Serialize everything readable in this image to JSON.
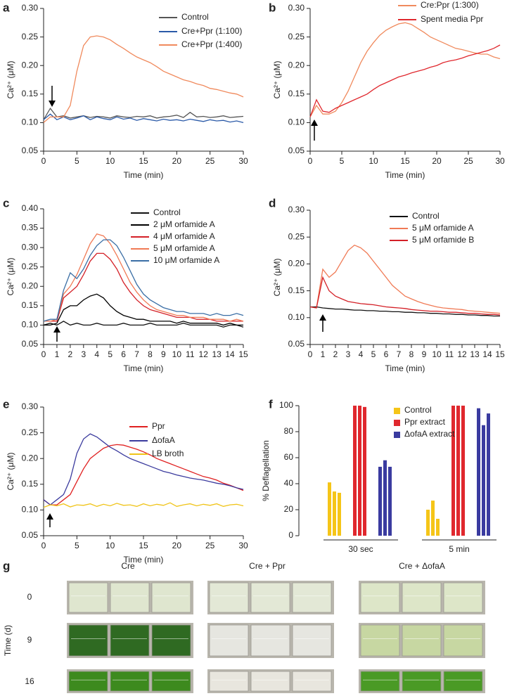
{
  "chart_data": [
    {
      "type": "line",
      "panel_label": "a",
      "x_label": "Time (min)",
      "y_label": "Ca²⁺ (μM)",
      "x": [
        0,
        1,
        2,
        3,
        4,
        5,
        6,
        7,
        8,
        9,
        10,
        11,
        12,
        13,
        14,
        15,
        16,
        17,
        18,
        19,
        20,
        21,
        22,
        23,
        24,
        25,
        26,
        27,
        28,
        29,
        30
      ],
      "xlim": [
        0,
        30
      ],
      "xticks": [
        0,
        5,
        10,
        15,
        20,
        25,
        30
      ],
      "ylim": [
        0.05,
        0.3
      ],
      "yticks": [
        0.05,
        {
          "value": 0.1,
          "label": "0.10"
        },
        0.15,
        {
          "value": 0.2,
          "label": "0.20"
        },
        0.25,
        {
          "value": 0.3,
          "label": "0.30"
        }
      ],
      "series": [
        {
          "name": "Control",
          "color": "#555555",
          "values": [
            0.105,
            0.125,
            0.11,
            0.112,
            0.108,
            0.11,
            0.112,
            0.109,
            0.111,
            0.11,
            0.108,
            0.112,
            0.11,
            0.109,
            0.111,
            0.11,
            0.112,
            0.108,
            0.11,
            0.111,
            0.113,
            0.109,
            0.118,
            0.11,
            0.111,
            0.109,
            0.11,
            0.112,
            0.109,
            0.11,
            0.111
          ]
        },
        {
          "name": "Cre+Ppr (1:100)",
          "color": "#2b5aa8",
          "values": [
            0.105,
            0.115,
            0.105,
            0.11,
            0.105,
            0.108,
            0.112,
            0.105,
            0.11,
            0.107,
            0.105,
            0.11,
            0.106,
            0.108,
            0.104,
            0.107,
            0.105,
            0.103,
            0.106,
            0.104,
            0.105,
            0.103,
            0.106,
            0.104,
            0.102,
            0.105,
            0.103,
            0.104,
            0.101,
            0.103,
            0.1
          ]
        },
        {
          "name": "Cre+Ppr (1:400)",
          "color": "#f08a5d",
          "values": [
            0.1,
            0.11,
            0.11,
            0.11,
            0.13,
            0.19,
            0.235,
            0.25,
            0.252,
            0.25,
            0.245,
            0.237,
            0.23,
            0.222,
            0.215,
            0.21,
            0.205,
            0.198,
            0.19,
            0.185,
            0.18,
            0.175,
            0.172,
            0.168,
            0.165,
            0.16,
            0.158,
            0.155,
            0.152,
            0.15,
            0.145
          ]
        }
      ]
    },
    {
      "type": "line",
      "panel_label": "b",
      "x_label": "Time (min)",
      "y_label": "Ca²⁺ (μM)",
      "x": [
        0,
        1,
        2,
        3,
        4,
        5,
        6,
        7,
        8,
        9,
        10,
        11,
        12,
        13,
        14,
        15,
        16,
        17,
        18,
        19,
        20,
        21,
        22,
        23,
        24,
        25,
        26,
        27,
        28,
        29,
        30
      ],
      "xlim": [
        0,
        30
      ],
      "xticks": [
        0,
        5,
        10,
        15,
        20,
        25,
        30
      ],
      "ylim": [
        0.05,
        0.3
      ],
      "yticks": [
        0.05,
        {
          "value": 0.1,
          "label": "0.10"
        },
        0.15,
        {
          "value": 0.2,
          "label": "0.20"
        },
        0.25,
        {
          "value": 0.3,
          "label": "0.30"
        }
      ],
      "series": [
        {
          "name": "Cre:Ppr (1:300)",
          "color": "#f08a5d",
          "values": [
            0.11,
            0.13,
            0.115,
            0.115,
            0.12,
            0.135,
            0.155,
            0.18,
            0.205,
            0.225,
            0.24,
            0.253,
            0.262,
            0.268,
            0.273,
            0.275,
            0.272,
            0.265,
            0.258,
            0.25,
            0.245,
            0.24,
            0.235,
            0.23,
            0.228,
            0.225,
            0.222,
            0.22,
            0.22,
            0.215,
            0.212
          ]
        },
        {
          "name": "Spent media Ppr",
          "color": "#e0282e",
          "values": [
            0.11,
            0.14,
            0.12,
            0.118,
            0.125,
            0.13,
            0.135,
            0.14,
            0.145,
            0.15,
            0.158,
            0.165,
            0.17,
            0.175,
            0.18,
            0.183,
            0.187,
            0.19,
            0.193,
            0.197,
            0.2,
            0.205,
            0.208,
            0.21,
            0.213,
            0.217,
            0.22,
            0.223,
            0.226,
            0.23,
            0.236
          ]
        }
      ]
    },
    {
      "type": "line",
      "panel_label": "c",
      "x_label": "Time (min)",
      "y_label": "Ca²⁺ (μM)",
      "x": [
        0,
        0.5,
        1,
        1.5,
        2,
        2.5,
        3,
        3.5,
        4,
        4.5,
        5,
        5.5,
        6,
        6.5,
        7,
        7.5,
        8,
        8.5,
        9,
        9.5,
        10,
        10.5,
        11,
        11.5,
        12,
        12.5,
        13,
        13.5,
        14,
        14.5,
        15
      ],
      "xlim": [
        0,
        15
      ],
      "xticks": [
        0,
        1,
        2,
        3,
        4,
        5,
        6,
        7,
        8,
        9,
        10,
        11,
        12,
        13,
        14,
        15
      ],
      "ylim": [
        0.05,
        0.4
      ],
      "yticks": [
        0.05,
        {
          "value": 0.1,
          "label": "0.10"
        },
        0.15,
        {
          "value": 0.2,
          "label": "0.20"
        },
        0.25,
        {
          "value": 0.3,
          "label": "0.30"
        },
        0.35,
        {
          "value": 0.4,
          "label": "0.40"
        }
      ],
      "series": [
        {
          "name": "Control",
          "color": "#111111",
          "values": [
            0.1,
            0.105,
            0.1,
            0.11,
            0.1,
            0.105,
            0.1,
            0.1,
            0.105,
            0.1,
            0.1,
            0.1,
            0.105,
            0.1,
            0.1,
            0.1,
            0.105,
            0.1,
            0.1,
            0.1,
            0.1,
            0.105,
            0.1,
            0.1,
            0.1,
            0.1,
            0.1,
            0.095,
            0.1,
            0.1,
            0.095
          ]
        },
        {
          "name": "2 μM orfamide A",
          "color": "#000000",
          "values": [
            0.1,
            0.1,
            0.105,
            0.14,
            0.15,
            0.15,
            0.165,
            0.175,
            0.18,
            0.17,
            0.15,
            0.135,
            0.125,
            0.12,
            0.115,
            0.115,
            0.11,
            0.11,
            0.11,
            0.11,
            0.105,
            0.11,
            0.105,
            0.105,
            0.105,
            0.105,
            0.105,
            0.1,
            0.105,
            0.1,
            0.1
          ]
        },
        {
          "name": "4 μM orfamide A",
          "color": "#d42027",
          "values": [
            0.11,
            0.11,
            0.11,
            0.17,
            0.185,
            0.2,
            0.23,
            0.265,
            0.285,
            0.285,
            0.27,
            0.245,
            0.21,
            0.185,
            0.165,
            0.15,
            0.14,
            0.135,
            0.13,
            0.125,
            0.12,
            0.12,
            0.12,
            0.115,
            0.115,
            0.115,
            0.11,
            0.11,
            0.11,
            0.11,
            0.11
          ]
        },
        {
          "name": "5 μM orfamide A",
          "color": "#f07a55",
          "values": [
            0.11,
            0.11,
            0.115,
            0.18,
            0.2,
            0.23,
            0.27,
            0.31,
            0.335,
            0.33,
            0.31,
            0.28,
            0.245,
            0.21,
            0.185,
            0.165,
            0.15,
            0.14,
            0.135,
            0.13,
            0.125,
            0.125,
            0.12,
            0.12,
            0.12,
            0.115,
            0.115,
            0.115,
            0.11,
            0.115,
            0.11
          ]
        },
        {
          "name": "10 μM orfamide A",
          "color": "#3a6ea5",
          "values": [
            0.11,
            0.115,
            0.115,
            0.19,
            0.235,
            0.22,
            0.245,
            0.28,
            0.305,
            0.32,
            0.32,
            0.305,
            0.275,
            0.24,
            0.205,
            0.18,
            0.165,
            0.155,
            0.145,
            0.14,
            0.135,
            0.135,
            0.13,
            0.13,
            0.13,
            0.125,
            0.13,
            0.125,
            0.125,
            0.13,
            0.125
          ]
        }
      ]
    },
    {
      "type": "line",
      "panel_label": "d",
      "x_label": "Time (min)",
      "y_label": "Ca²⁺ (μM)",
      "x": [
        0,
        0.5,
        1,
        1.5,
        2,
        2.5,
        3,
        3.5,
        4,
        4.5,
        5,
        5.5,
        6,
        6.5,
        7,
        7.5,
        8,
        8.5,
        9,
        9.5,
        10,
        10.5,
        11,
        11.5,
        12,
        12.5,
        13,
        13.5,
        14,
        14.5,
        15
      ],
      "xlim": [
        0,
        15
      ],
      "xticks": [
        0,
        1,
        2,
        3,
        4,
        5,
        6,
        7,
        8,
        9,
        10,
        11,
        12,
        13,
        14,
        15
      ],
      "ylim": [
        0.05,
        0.3
      ],
      "yticks": [
        0.05,
        {
          "value": 0.1,
          "label": "0.10"
        },
        0.15,
        {
          "value": 0.2,
          "label": "0.20"
        },
        0.25,
        {
          "value": 0.3,
          "label": "0.30"
        }
      ],
      "series": [
        {
          "name": "Control",
          "color": "#111111",
          "values": [
            0.12,
            0.12,
            0.118,
            0.117,
            0.116,
            0.116,
            0.115,
            0.114,
            0.114,
            0.113,
            0.113,
            0.112,
            0.112,
            0.111,
            0.111,
            0.11,
            0.11,
            0.109,
            0.109,
            0.108,
            0.108,
            0.107,
            0.107,
            0.106,
            0.106,
            0.105,
            0.105,
            0.104,
            0.104,
            0.103,
            0.103
          ]
        },
        {
          "name": "5 μM orfamide A",
          "color": "#f07a55",
          "values": [
            0.12,
            0.118,
            0.19,
            0.175,
            0.185,
            0.205,
            0.225,
            0.235,
            0.23,
            0.22,
            0.205,
            0.19,
            0.175,
            0.16,
            0.15,
            0.14,
            0.135,
            0.13,
            0.126,
            0.123,
            0.12,
            0.118,
            0.117,
            0.116,
            0.115,
            0.113,
            0.112,
            0.111,
            0.11,
            0.109,
            0.108
          ]
        },
        {
          "name": "5 μM orfamide B",
          "color": "#d42027",
          "values": [
            0.12,
            0.118,
            0.175,
            0.15,
            0.14,
            0.135,
            0.13,
            0.128,
            0.126,
            0.125,
            0.124,
            0.122,
            0.12,
            0.119,
            0.118,
            0.117,
            0.115,
            0.114,
            0.113,
            0.112,
            0.112,
            0.111,
            0.11,
            0.11,
            0.109,
            0.108,
            0.108,
            0.107,
            0.106,
            0.106,
            0.105
          ]
        }
      ]
    },
    {
      "type": "line",
      "panel_label": "e",
      "x_label": "Time (min)",
      "y_label": "Ca²⁺ (μM)",
      "x": [
        0,
        1,
        2,
        3,
        4,
        5,
        6,
        7,
        8,
        9,
        10,
        11,
        12,
        13,
        14,
        15,
        16,
        17,
        18,
        19,
        20,
        21,
        22,
        23,
        24,
        25,
        26,
        27,
        28,
        29,
        30
      ],
      "xlim": [
        0,
        30
      ],
      "xticks": [
        0,
        5,
        10,
        15,
        20,
        25,
        30
      ],
      "ylim": [
        0.05,
        0.3
      ],
      "yticks": [
        0.05,
        {
          "value": 0.1,
          "label": "0.10"
        },
        0.15,
        {
          "value": 0.2,
          "label": "0.20"
        },
        0.25,
        {
          "value": 0.3,
          "label": "0.30"
        }
      ],
      "series": [
        {
          "name": "Ppr",
          "color": "#e02020",
          "values": [
            0.12,
            0.11,
            0.11,
            0.12,
            0.13,
            0.155,
            0.18,
            0.2,
            0.21,
            0.22,
            0.225,
            0.227,
            0.226,
            0.222,
            0.218,
            0.213,
            0.207,
            0.2,
            0.195,
            0.19,
            0.185,
            0.18,
            0.175,
            0.17,
            0.165,
            0.162,
            0.158,
            0.152,
            0.148,
            0.143,
            0.138
          ]
        },
        {
          "name": "ΔofaA",
          "color": "#3b3b9e",
          "values": [
            0.12,
            0.11,
            0.12,
            0.13,
            0.16,
            0.21,
            0.238,
            0.248,
            0.242,
            0.232,
            0.222,
            0.215,
            0.207,
            0.2,
            0.195,
            0.19,
            0.185,
            0.18,
            0.175,
            0.172,
            0.168,
            0.165,
            0.162,
            0.16,
            0.158,
            0.155,
            0.152,
            0.15,
            0.147,
            0.143,
            0.14
          ]
        },
        {
          "name": "LB broth",
          "color": "#f0c419",
          "values": [
            0.105,
            0.11,
            0.108,
            0.112,
            0.106,
            0.11,
            0.109,
            0.112,
            0.107,
            0.111,
            0.108,
            0.113,
            0.109,
            0.11,
            0.107,
            0.112,
            0.108,
            0.111,
            0.109,
            0.114,
            0.107,
            0.11,
            0.112,
            0.108,
            0.111,
            0.109,
            0.112,
            0.107,
            0.11,
            0.111,
            0.108
          ]
        }
      ]
    },
    {
      "type": "bar",
      "panel_label": "f",
      "y_label": "% Deflagellation",
      "categories": [
        "30 sec",
        "5 min"
      ],
      "ylim": [
        0,
        100
      ],
      "yticks": [
        0,
        20,
        40,
        60,
        80,
        100
      ],
      "series": [
        {
          "name": "Control",
          "color": "#f5c518",
          "values": [
            [
              41,
              34,
              33
            ],
            [
              20,
              27,
              13
            ]
          ]
        },
        {
          "name": "Ppr extract",
          "color": "#e0282e",
          "values": [
            [
              100,
              100,
              99
            ],
            [
              100,
              100,
              100
            ]
          ]
        },
        {
          "name": "ΔofaA extract",
          "color": "#3a3ba0",
          "values": [
            [
              53,
              58,
              53
            ],
            [
              98,
              85,
              94
            ]
          ]
        }
      ]
    }
  ],
  "figure_g": {
    "panel_label": "g",
    "y_label": "Time (d)",
    "columns": [
      "Cre",
      "Cre + Ppr",
      "Cre + ΔofaA"
    ],
    "rows": [
      "0",
      "9",
      "16"
    ]
  }
}
